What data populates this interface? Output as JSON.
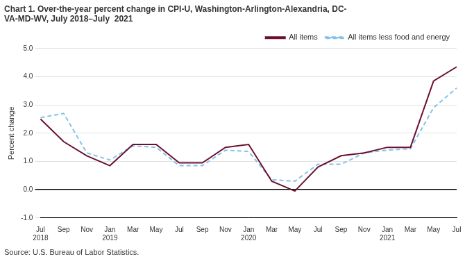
{
  "chart_data": {
    "type": "line",
    "title": [
      "Chart 1. Over-the-year percent change in CPI-U, Washington-Arlington-Alexandria, DC-",
      "VA-MD-WV, July 2018–July  2021"
    ],
    "y_label": "Percent change",
    "annotation": "Source: U.S. Bureau of Labor Statistics.",
    "categories": [
      "Jul\n2018",
      "Sep",
      "Nov",
      "Jan\n2019",
      "Mar",
      "May",
      "Jul",
      "Sep",
      "Nov",
      "Jan\n2020",
      "Mar",
      "May",
      "Jul",
      "Sep",
      "Nov",
      "Jan\n2021",
      "Mar",
      "May",
      "Jul"
    ],
    "series": [
      {
        "name": "All items",
        "color": "#6b1030",
        "line_style": "solid",
        "values": [
          2.5,
          1.7,
          1.2,
          0.85,
          1.6,
          1.6,
          0.95,
          0.95,
          1.5,
          1.6,
          0.3,
          -0.05,
          0.8,
          1.2,
          1.3,
          1.5,
          1.5,
          3.85,
          4.35
        ]
      },
      {
        "name": "All items less food and energy",
        "color": "#85c1e9",
        "line_style": "dashed",
        "values": [
          2.55,
          2.7,
          1.3,
          1.05,
          1.55,
          1.5,
          0.85,
          0.85,
          1.4,
          1.35,
          0.35,
          0.3,
          0.9,
          0.9,
          1.3,
          1.4,
          1.45,
          2.9,
          3.6
        ]
      }
    ],
    "ylim": [
      -1.0,
      5.0
    ],
    "yticks": [
      {
        "value": -1.0,
        "label": "-1.0"
      },
      {
        "value": 0.0,
        "label": "0.0"
      },
      {
        "value": 1.0,
        "label": "1.0"
      },
      {
        "value": 2.0,
        "label": "2.0"
      },
      {
        "value": 3.0,
        "label": "3.0"
      },
      {
        "value": 4.0,
        "label": "4.0"
      },
      {
        "value": 5.0,
        "label": "5.0"
      }
    ],
    "grid": true,
    "legend": "top"
  }
}
